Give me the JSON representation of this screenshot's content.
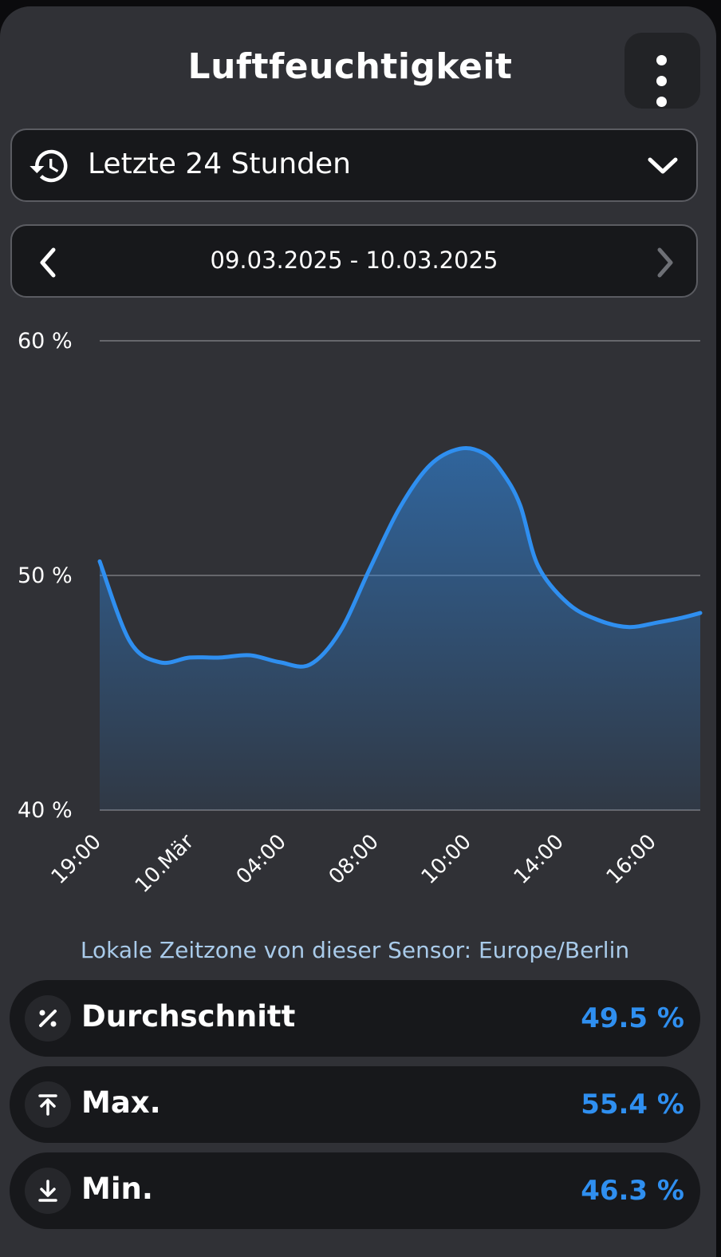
{
  "header": {
    "title": "Luftfeuchtigkeit",
    "menu_icon": "more-vert-icon"
  },
  "range_selector": {
    "icon": "history-icon",
    "label": "Letzte 24 Stunden",
    "dropdown_icon": "chevron-down-icon"
  },
  "date_nav": {
    "label": "09.03.2025 - 10.03.2025",
    "prev_icon": "chevron-left-icon",
    "next_icon": "chevron-right-icon"
  },
  "chart_data": {
    "type": "area",
    "ylim": [
      40,
      60
    ],
    "yticks": [
      "60 %",
      "50 %",
      "40 %"
    ],
    "xticks": [
      "19:00",
      "10.Mär",
      "04:00",
      "08:00",
      "10:00",
      "14:00",
      "16:00"
    ],
    "series": [
      {
        "x": [
          0.0,
          0.05,
          0.1,
          0.15,
          0.2,
          0.25,
          0.3,
          0.35,
          0.4,
          0.45,
          0.5,
          0.55,
          0.6,
          0.64,
          0.67,
          0.7,
          0.73,
          0.78,
          0.83,
          0.88,
          0.93,
          0.97,
          1.0
        ],
        "values": [
          50.6,
          47.2,
          46.3,
          46.5,
          46.5,
          46.6,
          46.3,
          46.2,
          47.6,
          50.3,
          52.9,
          54.7,
          55.4,
          55.2,
          54.4,
          53.0,
          50.4,
          48.8,
          48.1,
          47.8,
          48.0,
          48.2,
          48.4
        ],
        "color": "#2f8ff0"
      }
    ]
  },
  "timezone_note": "Lokale Zeitzone von dieser Sensor: Europe/Berlin",
  "stats": [
    {
      "icon": "percent-icon",
      "label": "Durchschnitt",
      "value": "49.5 %"
    },
    {
      "icon": "arrow-up-to-line-icon",
      "label": "Max.",
      "value": "55.4 %"
    },
    {
      "icon": "arrow-down-to-line-icon",
      "label": "Min.",
      "value": "46.3 %"
    }
  ]
}
